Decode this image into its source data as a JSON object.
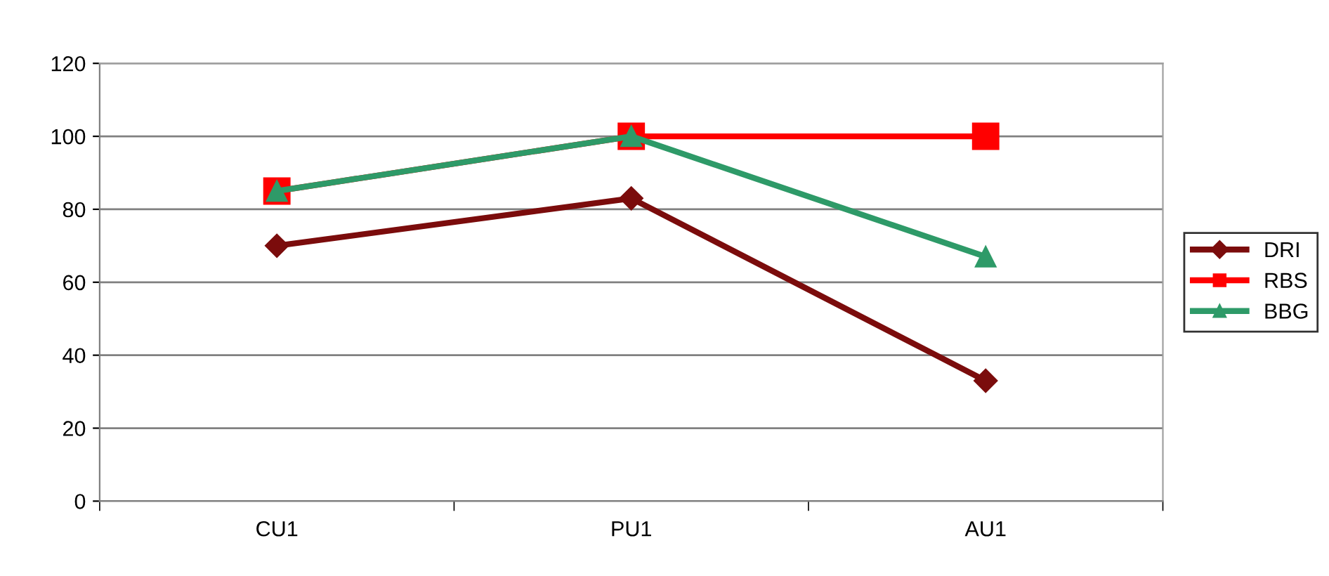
{
  "chart_data": {
    "type": "line",
    "categories": [
      "CU1",
      "PU1",
      "AU1"
    ],
    "series": [
      {
        "name": "DRI",
        "color": "#7b0c0c",
        "marker": "diamond",
        "values": [
          70,
          83,
          33
        ]
      },
      {
        "name": "RBS",
        "color": "#ff0000",
        "marker": "square",
        "values": [
          85,
          100,
          100
        ]
      },
      {
        "name": "BBG",
        "color": "#2e9a68",
        "marker": "triangle",
        "values": [
          85,
          100,
          67
        ]
      }
    ],
    "ylim": [
      0,
      120
    ],
    "yticks": [
      0,
      20,
      40,
      60,
      80,
      100,
      120
    ],
    "grid": "y",
    "legend": "right",
    "line_style": "solid"
  }
}
